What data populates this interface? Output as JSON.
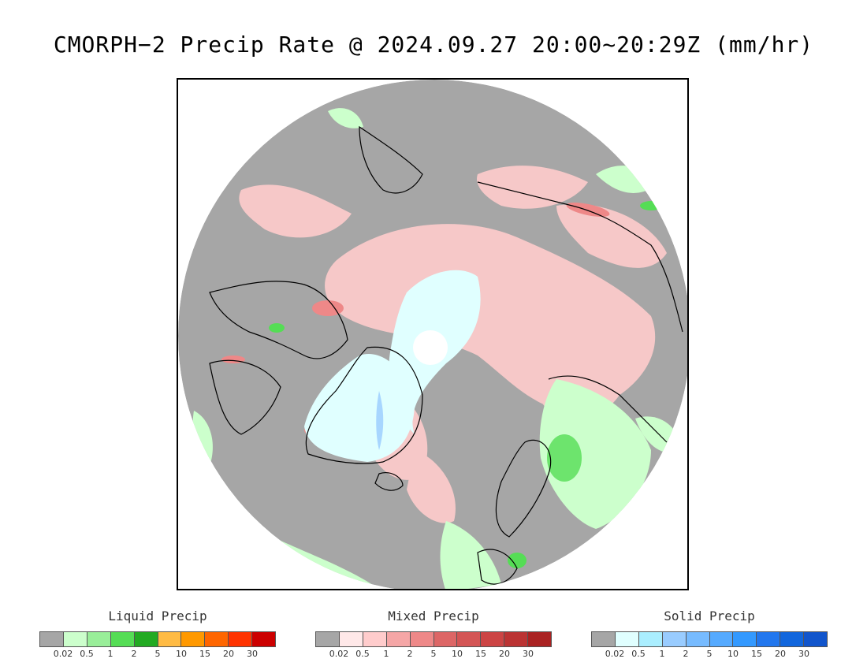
{
  "title": "CMORPH−2 Precip Rate @ 2024.09.27 20:00~20:29Z (mm/hr)",
  "legends": [
    {
      "title": "Liquid Precip",
      "colors": [
        "#a6a6a6",
        "#ccffcc",
        "#99ee99",
        "#55dd55",
        "#22aa22",
        "#ffbb44",
        "#ff9900",
        "#ff6600",
        "#ff3300",
        "#cc0000"
      ],
      "ticks": [
        "0.02",
        "0.5",
        "1",
        "2",
        "5",
        "10",
        "15",
        "20",
        "30"
      ]
    },
    {
      "title": "Mixed Precip",
      "colors": [
        "#a6a6a6",
        "#ffe8e8",
        "#ffcccc",
        "#f5a6a6",
        "#ee8888",
        "#dd6666",
        "#d45555",
        "#cc4444",
        "#bb3333",
        "#aa2222"
      ],
      "ticks": [
        "0.02",
        "0.5",
        "1",
        "2",
        "5",
        "10",
        "15",
        "20",
        "30"
      ]
    },
    {
      "title": "Solid Precip",
      "colors": [
        "#a6a6a6",
        "#e0ffff",
        "#aaeeff",
        "#99ccff",
        "#77bbff",
        "#55aaff",
        "#3399ff",
        "#2277ee",
        "#1166dd",
        "#1155cc"
      ],
      "ticks": [
        "0.02",
        "0.5",
        "1",
        "2",
        "5",
        "10",
        "15",
        "20",
        "30"
      ]
    }
  ],
  "map": {
    "background": "#a6a6a6",
    "projection": "polar-stereographic-north",
    "coastline_color": "#000000"
  }
}
